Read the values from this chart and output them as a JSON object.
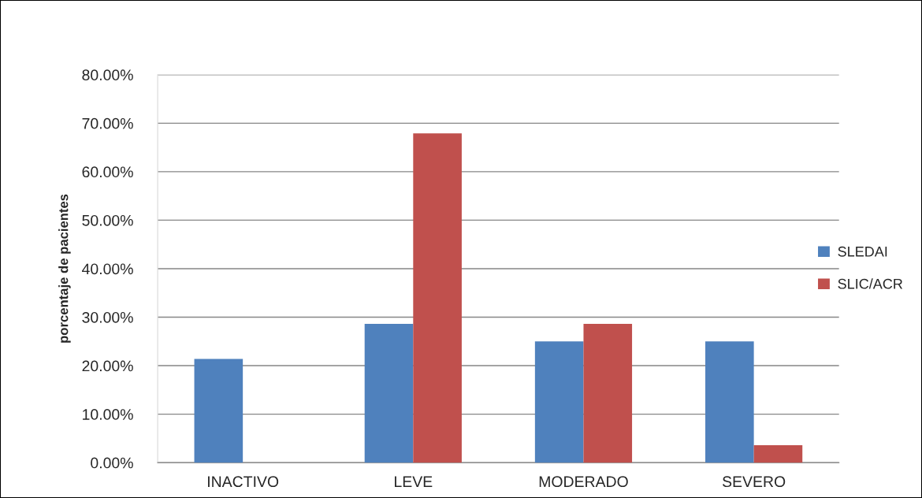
{
  "chart_data": {
    "type": "bar",
    "ylabel": "porcentaje de pacientes",
    "categories": [
      "INACTIVO",
      "LEVE",
      "MODERADO",
      "SEVERO"
    ],
    "series": [
      {
        "name": "SLEDAI",
        "color": "#4f81bd",
        "values": [
          21.4,
          28.6,
          25.0,
          25.0
        ]
      },
      {
        "name": "SLIC/ACR",
        "color": "#c0504d",
        "values": [
          null,
          67.9,
          28.6,
          3.6
        ]
      }
    ],
    "ylim": [
      0,
      80
    ],
    "yticks": [
      {
        "value": 0,
        "label": "0.00%"
      },
      {
        "value": 10,
        "label": "10.00%"
      },
      {
        "value": 20,
        "label": "20.00%"
      },
      {
        "value": 30,
        "label": "30.00%"
      },
      {
        "value": 40,
        "label": "40.00%"
      },
      {
        "value": 50,
        "label": "50.00%"
      },
      {
        "value": 60,
        "label": "60.00%"
      },
      {
        "value": 70,
        "label": "70.00%"
      },
      {
        "value": 80,
        "label": "80.00%"
      }
    ],
    "grid": "y",
    "legend": "right"
  }
}
